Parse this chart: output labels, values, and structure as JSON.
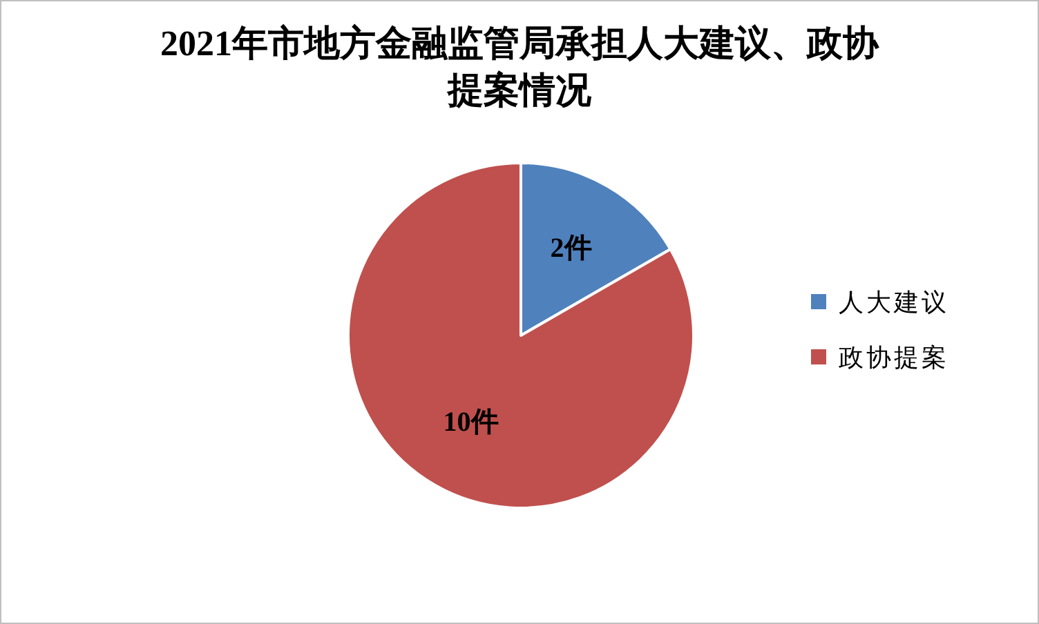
{
  "chart_data": {
    "type": "pie",
    "title": "2021年市地方金融监管局承担人大建议、政协提案情况",
    "categories": [
      "人大建议",
      "政协提案"
    ],
    "values": [
      2,
      10
    ],
    "colors": [
      "#4f81bd",
      "#c0504d"
    ],
    "value_labels": [
      "2件",
      "10件"
    ],
    "legend": "right"
  }
}
